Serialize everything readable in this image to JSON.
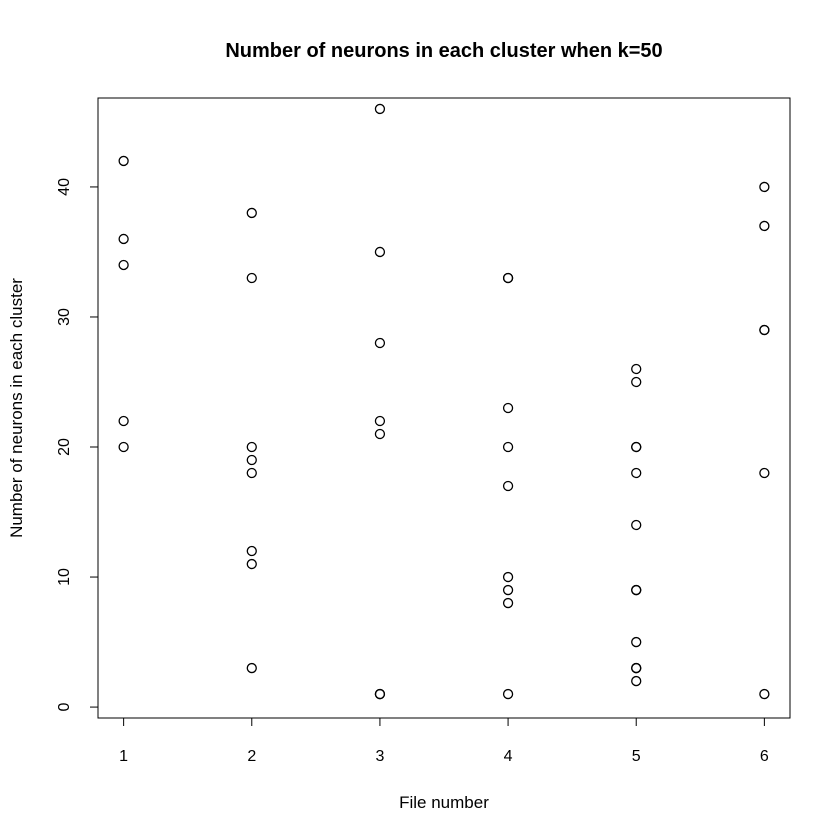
{
  "chart_data": {
    "type": "scatter",
    "title": "Number of neurons in each cluster when k=50",
    "xlabel": "File number",
    "ylabel": "Number of neurons in each cluster",
    "xlim": [
      0.8,
      6.2
    ],
    "ylim": [
      -0.84,
      46.84
    ],
    "x_ticks": [
      1,
      2,
      3,
      4,
      5,
      6
    ],
    "y_ticks": [
      0,
      10,
      20,
      30,
      40
    ],
    "grid": false,
    "legend": "none",
    "point_color": "#000000",
    "points": [
      {
        "x": 1,
        "y": 42
      },
      {
        "x": 1,
        "y": 36
      },
      {
        "x": 1,
        "y": 34
      },
      {
        "x": 1,
        "y": 22
      },
      {
        "x": 1,
        "y": 20
      },
      {
        "x": 2,
        "y": 38
      },
      {
        "x": 2,
        "y": 33
      },
      {
        "x": 2,
        "y": 20
      },
      {
        "x": 2,
        "y": 19
      },
      {
        "x": 2,
        "y": 18
      },
      {
        "x": 2,
        "y": 12
      },
      {
        "x": 2,
        "y": 11
      },
      {
        "x": 2,
        "y": 3
      },
      {
        "x": 3,
        "y": 46
      },
      {
        "x": 3,
        "y": 35
      },
      {
        "x": 3,
        "y": 28
      },
      {
        "x": 3,
        "y": 22
      },
      {
        "x": 3,
        "y": 21
      },
      {
        "x": 3,
        "y": 1
      },
      {
        "x": 3,
        "y": 1
      },
      {
        "x": 4,
        "y": 33
      },
      {
        "x": 4,
        "y": 33
      },
      {
        "x": 4,
        "y": 23
      },
      {
        "x": 4,
        "y": 20
      },
      {
        "x": 4,
        "y": 17
      },
      {
        "x": 4,
        "y": 10
      },
      {
        "x": 4,
        "y": 9
      },
      {
        "x": 4,
        "y": 8
      },
      {
        "x": 4,
        "y": 1
      },
      {
        "x": 5,
        "y": 26
      },
      {
        "x": 5,
        "y": 25
      },
      {
        "x": 5,
        "y": 20
      },
      {
        "x": 5,
        "y": 20
      },
      {
        "x": 5,
        "y": 18
      },
      {
        "x": 5,
        "y": 14
      },
      {
        "x": 5,
        "y": 9
      },
      {
        "x": 5,
        "y": 9
      },
      {
        "x": 5,
        "y": 5
      },
      {
        "x": 5,
        "y": 3
      },
      {
        "x": 5,
        "y": 3
      },
      {
        "x": 5,
        "y": 2
      },
      {
        "x": 6,
        "y": 40
      },
      {
        "x": 6,
        "y": 37
      },
      {
        "x": 6,
        "y": 29
      },
      {
        "x": 6,
        "y": 29
      },
      {
        "x": 6,
        "y": 18
      },
      {
        "x": 6,
        "y": 1
      }
    ]
  }
}
